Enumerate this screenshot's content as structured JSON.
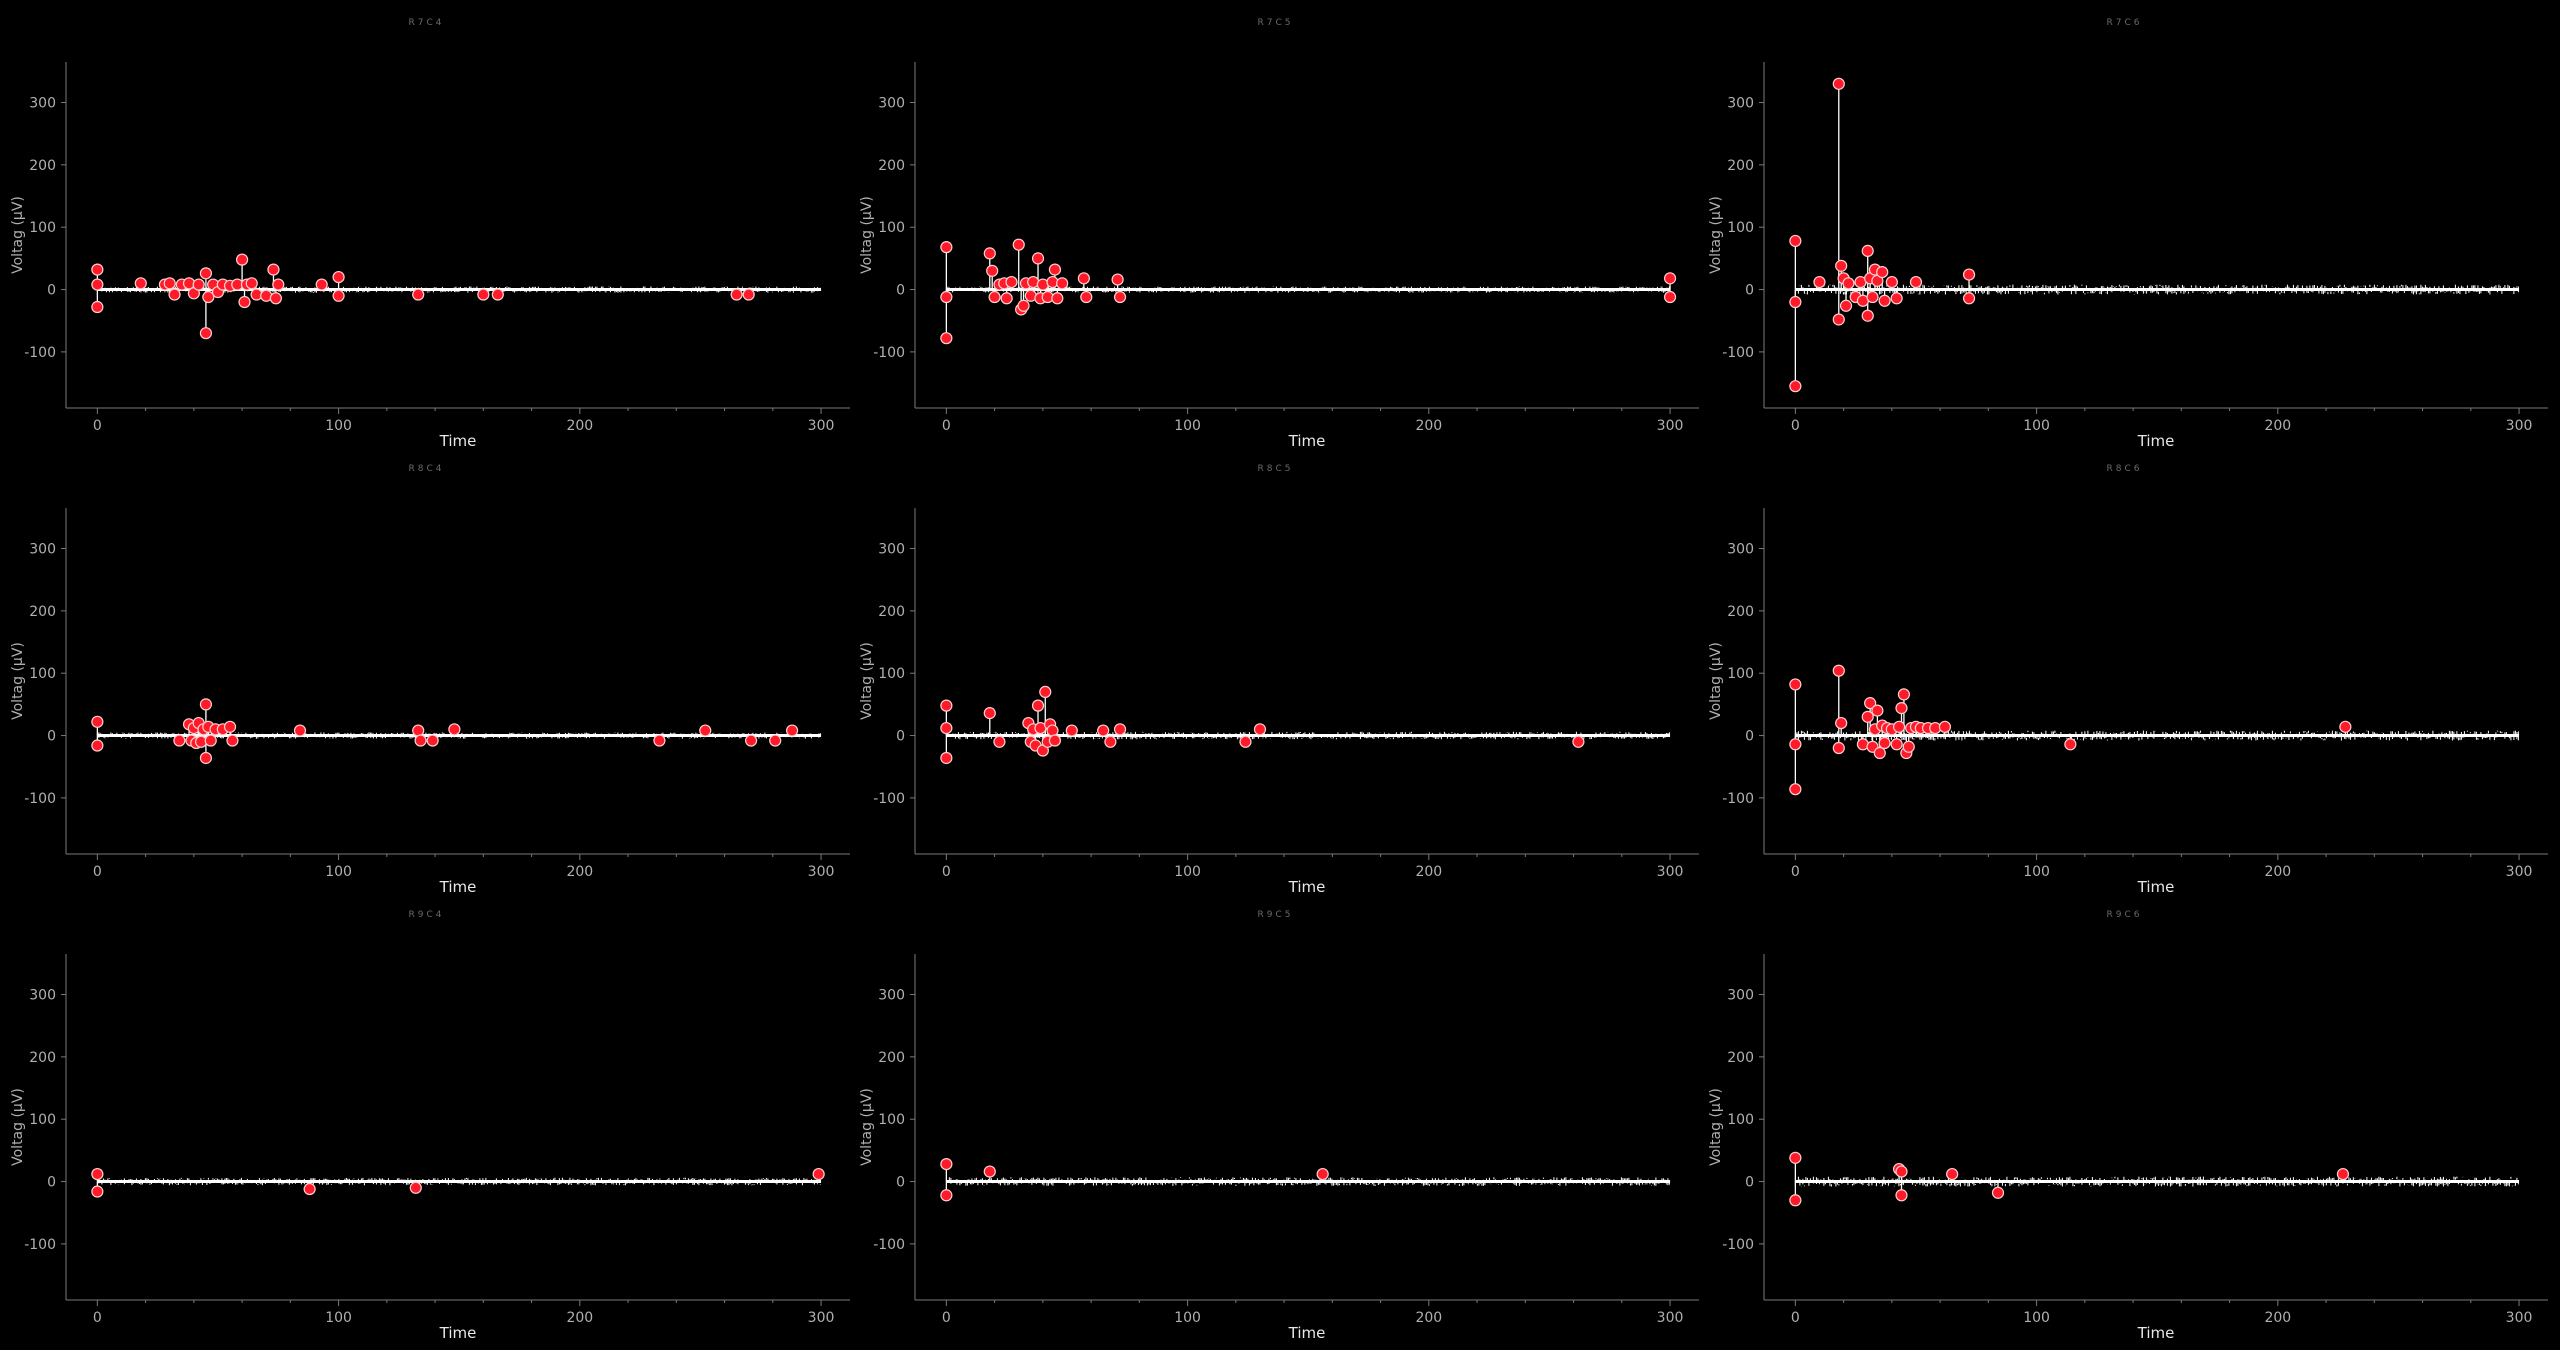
{
  "chart_data": [
    {
      "type": "scatter",
      "title": "R7C4",
      "xlabel": "Time",
      "ylabel": "Voltag (µV)",
      "xlim": [
        -13,
        312
      ],
      "ylim": [
        -190,
        365
      ],
      "xticks": [
        0,
        100,
        200,
        300
      ],
      "yticks": [
        -100,
        0,
        100,
        200,
        300
      ],
      "noise_amplitude": 5,
      "x_end": 300,
      "spikes": [
        [
          0,
          32
        ],
        [
          0,
          8
        ],
        [
          0,
          -28
        ],
        [
          18,
          10
        ],
        [
          28,
          8
        ],
        [
          30,
          10
        ],
        [
          32,
          -8
        ],
        [
          35,
          8
        ],
        [
          38,
          10
        ],
        [
          40,
          -6
        ],
        [
          42,
          8
        ],
        [
          45,
          26
        ],
        [
          45,
          -70
        ],
        [
          46,
          -12
        ],
        [
          48,
          8
        ],
        [
          50,
          -4
        ],
        [
          52,
          8
        ],
        [
          55,
          6
        ],
        [
          58,
          8
        ],
        [
          60,
          48
        ],
        [
          61,
          -20
        ],
        [
          62,
          8
        ],
        [
          64,
          10
        ],
        [
          66,
          -8
        ],
        [
          70,
          -10
        ],
        [
          73,
          32
        ],
        [
          74,
          -14
        ],
        [
          75,
          8
        ],
        [
          93,
          8
        ],
        [
          100,
          20
        ],
        [
          100,
          -10
        ],
        [
          133,
          -8
        ],
        [
          160,
          -8
        ],
        [
          166,
          -8
        ],
        [
          265,
          -8
        ],
        [
          270,
          -8
        ]
      ]
    },
    {
      "type": "scatter",
      "title": "R7C5",
      "xlabel": "Time",
      "ylabel": "Voltag (µV)",
      "xlim": [
        -13,
        312
      ],
      "ylim": [
        -190,
        365
      ],
      "xticks": [
        0,
        100,
        200,
        300
      ],
      "yticks": [
        -100,
        0,
        100,
        200,
        300
      ],
      "noise_amplitude": 5,
      "x_end": 300,
      "spikes": [
        [
          0,
          68
        ],
        [
          0,
          -12
        ],
        [
          0,
          -78
        ],
        [
          18,
          58
        ],
        [
          19,
          30
        ],
        [
          20,
          -12
        ],
        [
          22,
          8
        ],
        [
          24,
          10
        ],
        [
          25,
          -14
        ],
        [
          27,
          12
        ],
        [
          30,
          72
        ],
        [
          31,
          -32
        ],
        [
          32,
          -26
        ],
        [
          33,
          10
        ],
        [
          35,
          -10
        ],
        [
          36,
          12
        ],
        [
          38,
          50
        ],
        [
          39,
          -14
        ],
        [
          40,
          8
        ],
        [
          42,
          -12
        ],
        [
          44,
          12
        ],
        [
          45,
          32
        ],
        [
          46,
          -14
        ],
        [
          48,
          10
        ],
        [
          57,
          18
        ],
        [
          58,
          -12
        ],
        [
          71,
          16
        ],
        [
          72,
          -12
        ],
        [
          300,
          18
        ],
        [
          300,
          -12
        ]
      ]
    },
    {
      "type": "scatter",
      "title": "R7C6",
      "xlabel": "Time",
      "ylabel": "Voltag (µV)",
      "xlim": [
        -13,
        312
      ],
      "ylim": [
        -190,
        365
      ],
      "xticks": [
        0,
        100,
        200,
        300
      ],
      "yticks": [
        -100,
        0,
        100,
        200,
        300
      ],
      "noise_amplitude": 8,
      "x_end": 300,
      "spikes": [
        [
          0,
          78
        ],
        [
          0,
          -20
        ],
        [
          0,
          -155
        ],
        [
          10,
          12
        ],
        [
          18,
          330
        ],
        [
          18,
          -48
        ],
        [
          19,
          38
        ],
        [
          20,
          18
        ],
        [
          21,
          -26
        ],
        [
          22,
          10
        ],
        [
          25,
          -12
        ],
        [
          27,
          12
        ],
        [
          28,
          -18
        ],
        [
          30,
          62
        ],
        [
          30,
          -42
        ],
        [
          31,
          18
        ],
        [
          32,
          -12
        ],
        [
          33,
          32
        ],
        [
          34,
          14
        ],
        [
          36,
          28
        ],
        [
          37,
          -18
        ],
        [
          40,
          12
        ],
        [
          42,
          -14
        ],
        [
          50,
          12
        ],
        [
          72,
          24
        ],
        [
          72,
          -14
        ]
      ]
    },
    {
      "type": "scatter",
      "title": "R8C4",
      "xlabel": "Time",
      "ylabel": "Voltag (µV)",
      "xlim": [
        -13,
        312
      ],
      "ylim": [
        -190,
        365
      ],
      "xticks": [
        0,
        100,
        200,
        300
      ],
      "yticks": [
        -100,
        0,
        100,
        200,
        300
      ],
      "noise_amplitude": 5,
      "x_end": 300,
      "spikes": [
        [
          0,
          22
        ],
        [
          0,
          -16
        ],
        [
          34,
          -8
        ],
        [
          38,
          18
        ],
        [
          39,
          -8
        ],
        [
          40,
          12
        ],
        [
          41,
          -12
        ],
        [
          42,
          20
        ],
        [
          43,
          -10
        ],
        [
          44,
          10
        ],
        [
          45,
          50
        ],
        [
          45,
          -36
        ],
        [
          46,
          14
        ],
        [
          47,
          -8
        ],
        [
          49,
          10
        ],
        [
          52,
          10
        ],
        [
          55,
          14
        ],
        [
          56,
          -8
        ],
        [
          84,
          8
        ],
        [
          133,
          8
        ],
        [
          134,
          -8
        ],
        [
          139,
          -8
        ],
        [
          148,
          10
        ],
        [
          233,
          -8
        ],
        [
          252,
          8
        ],
        [
          271,
          -8
        ],
        [
          281,
          -8
        ],
        [
          288,
          8
        ]
      ]
    },
    {
      "type": "scatter",
      "title": "R8C5",
      "xlabel": "Time",
      "ylabel": "Voltag (µV)",
      "xlim": [
        -13,
        312
      ],
      "ylim": [
        -190,
        365
      ],
      "xticks": [
        0,
        100,
        200,
        300
      ],
      "yticks": [
        -100,
        0,
        100,
        200,
        300
      ],
      "noise_amplitude": 6,
      "x_end": 300,
      "spikes": [
        [
          0,
          48
        ],
        [
          0,
          12
        ],
        [
          0,
          -36
        ],
        [
          18,
          36
        ],
        [
          22,
          -10
        ],
        [
          34,
          20
        ],
        [
          35,
          -10
        ],
        [
          36,
          10
        ],
        [
          37,
          -16
        ],
        [
          38,
          48
        ],
        [
          39,
          12
        ],
        [
          40,
          -24
        ],
        [
          41,
          70
        ],
        [
          42,
          -10
        ],
        [
          43,
          18
        ],
        [
          44,
          8
        ],
        [
          45,
          -8
        ],
        [
          52,
          8
        ],
        [
          65,
          8
        ],
        [
          68,
          -10
        ],
        [
          72,
          10
        ],
        [
          124,
          -10
        ],
        [
          130,
          10
        ],
        [
          262,
          -10
        ]
      ]
    },
    {
      "type": "scatter",
      "title": "R8C6",
      "xlabel": "Time",
      "ylabel": "Voltag (µV)",
      "xlim": [
        -13,
        312
      ],
      "ylim": [
        -190,
        365
      ],
      "xticks": [
        0,
        100,
        200,
        300
      ],
      "yticks": [
        -100,
        0,
        100,
        200,
        300
      ],
      "noise_amplitude": 8,
      "x_end": 300,
      "spikes": [
        [
          0,
          82
        ],
        [
          0,
          -14
        ],
        [
          0,
          -86
        ],
        [
          18,
          104
        ],
        [
          18,
          -20
        ],
        [
          19,
          20
        ],
        [
          28,
          -14
        ],
        [
          30,
          30
        ],
        [
          31,
          52
        ],
        [
          32,
          -18
        ],
        [
          33,
          10
        ],
        [
          34,
          40
        ],
        [
          35,
          -28
        ],
        [
          36,
          16
        ],
        [
          37,
          -12
        ],
        [
          38,
          12
        ],
        [
          40,
          10
        ],
        [
          42,
          -14
        ],
        [
          43,
          14
        ],
        [
          44,
          44
        ],
        [
          45,
          66
        ],
        [
          46,
          -28
        ],
        [
          47,
          -18
        ],
        [
          48,
          12
        ],
        [
          50,
          14
        ],
        [
          52,
          12
        ],
        [
          55,
          12
        ],
        [
          58,
          12
        ],
        [
          62,
          14
        ],
        [
          114,
          -14
        ],
        [
          228,
          14
        ]
      ]
    },
    {
      "type": "scatter",
      "title": "R9C4",
      "xlabel": "Time",
      "ylabel": "Voltag (µV)",
      "xlim": [
        -13,
        312
      ],
      "ylim": [
        -190,
        365
      ],
      "xticks": [
        0,
        100,
        200,
        300
      ],
      "yticks": [
        -100,
        0,
        100,
        200,
        300
      ],
      "noise_amplitude": 6,
      "x_end": 300,
      "spikes": [
        [
          0,
          12
        ],
        [
          0,
          -16
        ],
        [
          88,
          -12
        ],
        [
          132,
          -10
        ],
        [
          299,
          12
        ]
      ]
    },
    {
      "type": "scatter",
      "title": "R9C5",
      "xlabel": "Time",
      "ylabel": "Voltag (µV)",
      "xlim": [
        -13,
        312
      ],
      "ylim": [
        -190,
        365
      ],
      "xticks": [
        0,
        100,
        200,
        300
      ],
      "yticks": [
        -100,
        0,
        100,
        200,
        300
      ],
      "noise_amplitude": 7,
      "x_end": 300,
      "spikes": [
        [
          0,
          28
        ],
        [
          0,
          -22
        ],
        [
          18,
          16
        ],
        [
          156,
          12
        ]
      ]
    },
    {
      "type": "scatter",
      "title": "R9C6",
      "xlabel": "Time",
      "ylabel": "Voltag (µV)",
      "xlim": [
        -13,
        312
      ],
      "ylim": [
        -190,
        365
      ],
      "xticks": [
        0,
        100,
        200,
        300
      ],
      "yticks": [
        -100,
        0,
        100,
        200,
        300
      ],
      "noise_amplitude": 8,
      "x_end": 300,
      "spikes": [
        [
          0,
          38
        ],
        [
          0,
          -30
        ],
        [
          43,
          20
        ],
        [
          44,
          16
        ],
        [
          44,
          -22
        ],
        [
          65,
          12
        ],
        [
          84,
          -18
        ],
        [
          227,
          12
        ]
      ]
    }
  ]
}
